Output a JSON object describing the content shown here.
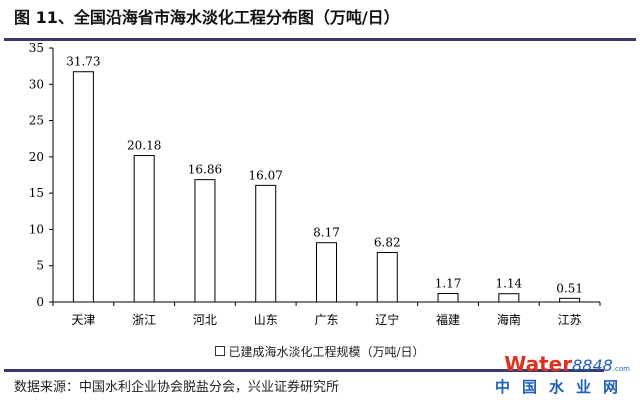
{
  "title": "图 11、全国沿海省市海水淡化工程分布图（万吨/日）",
  "source": "数据来源：中国水利企业协会脱盐分会，兴业证券研究所",
  "logo": {
    "brand": "Water",
    "num": "8848",
    "dotcom": ".com",
    "cn": "中国水业网"
  },
  "chart_data": {
    "type": "bar",
    "title": "全国沿海省市海水淡化工程分布图（万吨/日）",
    "categories": [
      "天津",
      "浙江",
      "河北",
      "山东",
      "广东",
      "辽宁",
      "福建",
      "海南",
      "江苏"
    ],
    "values": [
      31.73,
      20.18,
      16.86,
      16.07,
      8.17,
      6.82,
      1.17,
      1.14,
      0.51
    ],
    "labels": [
      "31.73",
      "20.18",
      "16.86",
      "16.07",
      "8.17",
      "6.82",
      "1.17",
      "1.14",
      "0.51"
    ],
    "legend": "已建成海水淡化工程规模（万吨/日）",
    "legend_position": "bottom",
    "ylim": [
      0,
      35
    ],
    "yticks": [
      0,
      5,
      10,
      15,
      20,
      25,
      30,
      35
    ],
    "grid": false,
    "xlabel": "",
    "ylabel": ""
  }
}
